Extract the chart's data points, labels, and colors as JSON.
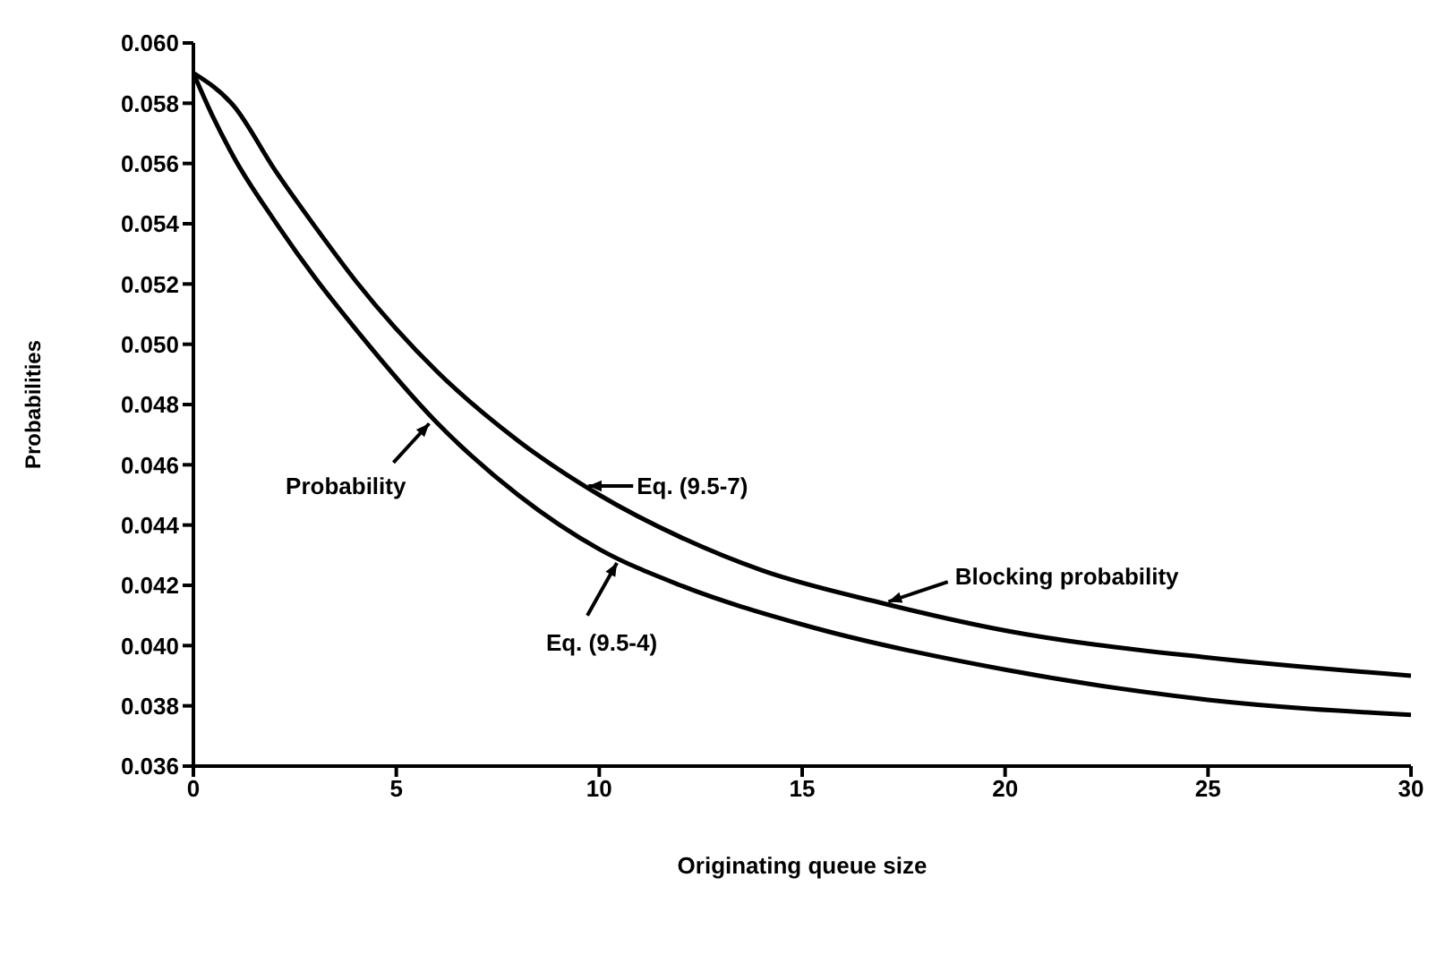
{
  "chart_data": {
    "type": "line",
    "xlabel": "Originating queue size",
    "ylabel": "Probabilities",
    "xlim": [
      0,
      30
    ],
    "xticks": [
      0,
      5,
      10,
      15,
      20,
      25,
      30
    ],
    "ylim": [
      0.036,
      0.06
    ],
    "yticks": [
      {
        "value": 0.036,
        "label": "0.036"
      },
      {
        "value": 0.038,
        "label": "0.038"
      },
      {
        "value": 0.04,
        "label": "0.040"
      },
      {
        "value": 0.042,
        "label": "0.042"
      },
      {
        "value": 0.044,
        "label": "0.044"
      },
      {
        "value": 0.046,
        "label": "0.046"
      },
      {
        "value": 0.048,
        "label": "0.048"
      },
      {
        "value": 0.05,
        "label": "0.050"
      },
      {
        "value": 0.052,
        "label": "0.052"
      },
      {
        "value": 0.054,
        "label": "0.054"
      },
      {
        "value": 0.056,
        "label": "0.056"
      },
      {
        "value": 0.058,
        "label": "0.058"
      },
      {
        "value": 0.06,
        "label": "0.060"
      }
    ],
    "grid": false,
    "marker": "none",
    "line_style": "solid",
    "series": [
      {
        "color": "#000000",
        "x": [
          0,
          1,
          2,
          3,
          4,
          6,
          8,
          10,
          12,
          14,
          17,
          20,
          25,
          30
        ],
        "values": [
          0.059,
          0.0579,
          0.0558,
          0.0539,
          0.0521,
          0.0491,
          0.0468,
          0.045,
          0.0436,
          0.0425,
          0.0414,
          0.0405,
          0.0396,
          0.039
        ]
      },
      {
        "color": "#000000",
        "x": [
          0,
          0.5,
          1,
          2,
          3,
          4,
          6,
          8,
          10,
          12,
          15,
          20,
          25,
          30
        ],
        "values": [
          0.059,
          0.0575,
          0.0562,
          0.0541,
          0.0522,
          0.0505,
          0.0474,
          0.045,
          0.0432,
          0.042,
          0.0407,
          0.0392,
          0.0382,
          0.0377
        ]
      }
    ],
    "annotations": [
      {
        "text": "Probability",
        "x": 5.9,
        "y": 0.0475
      },
      {
        "text": "Eq. (9.5-7)",
        "x": 9.6,
        "y": 0.0453
      },
      {
        "text": "Eq. (9.5-4)",
        "x": 10.5,
        "y": 0.0429
      },
      {
        "text": "Blocking probability",
        "x": 17,
        "y": 0.0414
      }
    ]
  }
}
